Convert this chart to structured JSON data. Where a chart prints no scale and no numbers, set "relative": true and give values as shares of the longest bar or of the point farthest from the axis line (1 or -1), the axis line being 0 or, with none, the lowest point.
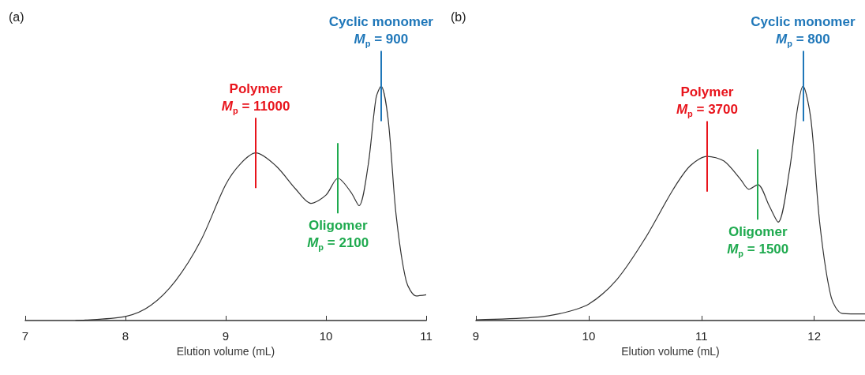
{
  "chart_data": [
    {
      "type": "line",
      "title": "(a)",
      "xlabel": "Elution volume (mL)",
      "relative": true,
      "marker": "none",
      "xlim": [
        7,
        11
      ],
      "xticks": [
        7,
        8,
        9,
        10,
        11
      ],
      "series": [
        {
          "color": "#333333",
          "x": [
            7.5,
            7.6,
            8.0,
            8.25,
            8.5,
            8.75,
            9.0,
            9.15,
            9.3,
            9.5,
            9.7,
            9.85,
            10.0,
            10.12,
            10.25,
            10.33,
            10.42,
            10.5,
            10.55,
            10.62,
            10.7,
            10.8,
            10.9,
            11.0
          ],
          "values": [
            0,
            0.002,
            0.017,
            0.064,
            0.17,
            0.34,
            0.58,
            0.67,
            0.715,
            0.66,
            0.56,
            0.5,
            0.535,
            0.607,
            0.547,
            0.49,
            0.66,
            0.95,
            1,
            0.86,
            0.45,
            0.17,
            0.105,
            0.11
          ]
        }
      ],
      "annotations": [
        {
          "text": "Polymer\nM$_{p}$ = 11000",
          "x": 9.3,
          "y": 0.715
        },
        {
          "text": "Oligomer\nM$_{p}$ = 2100",
          "x": 10.12,
          "y": 0.607
        },
        {
          "text": "Cyclic monomer\nM$_{p}$ = 900",
          "x": 10.55,
          "y": 1
        }
      ]
    },
    {
      "type": "line",
      "title": "(b)",
      "xlabel": "Elution volume (mL)",
      "relative": true,
      "marker": "none",
      "xlim": [
        9,
        12.45
      ],
      "xticks": [
        9,
        10,
        11,
        12
      ],
      "series": [
        {
          "color": "#333333",
          "x": [
            9.0,
            9.5,
            9.75,
            10.0,
            10.25,
            10.5,
            10.75,
            10.9,
            11.05,
            11.2,
            11.35,
            11.42,
            11.5,
            11.6,
            11.68,
            11.78,
            11.85,
            11.9,
            11.97,
            12.05,
            12.15,
            12.25,
            12.45
          ],
          "values": [
            0.003,
            0.013,
            0.03,
            0.07,
            0.175,
            0.35,
            0.56,
            0.66,
            0.7,
            0.68,
            0.6,
            0.56,
            0.58,
            0.49,
            0.42,
            0.64,
            0.9,
            1,
            0.86,
            0.41,
            0.1,
            0.03,
            0.028
          ]
        }
      ],
      "annotations": [
        {
          "text": "Polymer\nM$_{p}$ = 3700",
          "x": 11.05,
          "y": 0.7
        },
        {
          "text": "Oligomer\nM$_{p}$ = 1500",
          "x": 11.5,
          "y": 0.58
        },
        {
          "text": "Cyclic monomer\nM$_{p}$ = 800",
          "x": 11.9,
          "y": 1
        }
      ]
    }
  ]
}
